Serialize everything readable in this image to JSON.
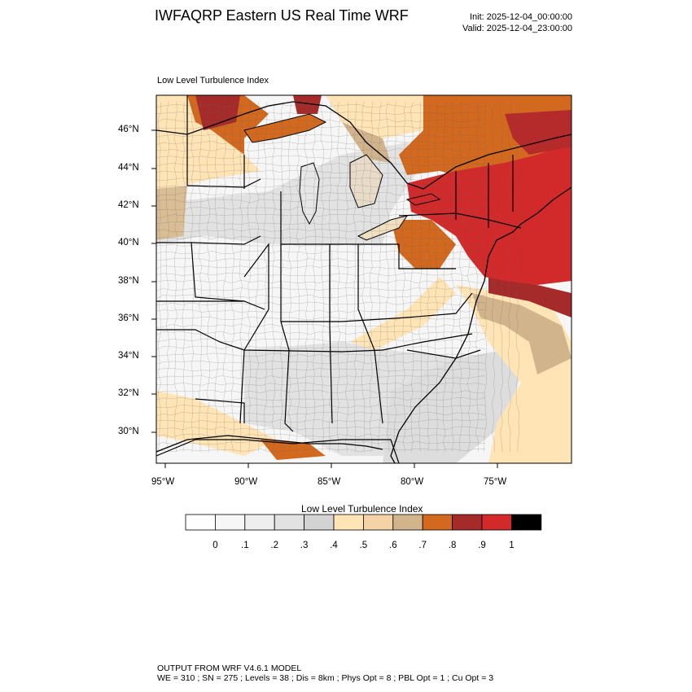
{
  "header": {
    "title": "IWFAQRP Eastern US Real Time WRF",
    "init": "Init: 2025-12-04_00:00:00",
    "valid": "Valid: 2025-12-04_23:00:00"
  },
  "map": {
    "subtitle": "Low Level Turbulence Index",
    "lat_labels": [
      "46°N",
      "44°N",
      "42°N",
      "40°N",
      "38°N",
      "36°N",
      "34°N",
      "32°N",
      "30°N"
    ],
    "lon_labels": [
      "95°W",
      "90°W",
      "85°W",
      "80°W",
      "75°W"
    ]
  },
  "colorbar": {
    "title": "Low Level Turbulence Index",
    "tick_labels": [
      "0",
      ".1",
      ".2",
      ".3",
      ".4",
      ".5",
      ".6",
      ".7",
      ".8",
      ".9",
      "1"
    ],
    "colors": [
      "#ffffff",
      "#f7f7f7",
      "#eeeeee",
      "#e2e2e2",
      "#d3d3d3",
      "#ffe4b5",
      "#f5d3a6",
      "#d2b48c",
      "#d2691e",
      "#a52a2a",
      "#d22a2a",
      "#000000"
    ]
  },
  "footer": {
    "line1": "OUTPUT FROM WRF V4.6.1 MODEL",
    "line2": "WE = 310 ; SN = 275 ; Levels = 38 ; Dis = 8km ; Phys Opt = 8 ; PBL Opt = 1 ; Cu Opt = 3"
  }
}
